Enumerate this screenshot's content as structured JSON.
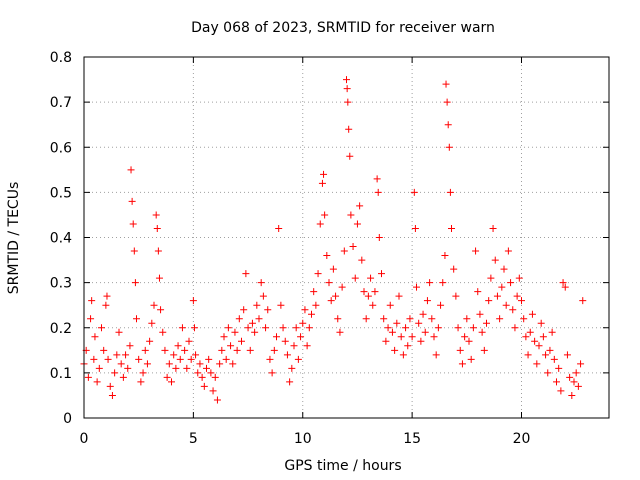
{
  "chart_data": {
    "type": "scatter",
    "title": "Day 068 of 2023, SRMTID for receiver warn",
    "xlabel": "GPS time / hours",
    "ylabel": "SRMTID / TECUs",
    "xlim": [
      0,
      24
    ],
    "ylim": [
      0,
      0.8
    ],
    "x_ticks": [
      0,
      5,
      10,
      15,
      20
    ],
    "x_tick_labels": [
      "0",
      "5",
      "10",
      "15",
      "20"
    ],
    "y_ticks": [
      0,
      0.1,
      0.2,
      0.3,
      0.4,
      0.5,
      0.6,
      0.7,
      0.8
    ],
    "y_tick_labels": [
      "0",
      "0.1",
      "0.2",
      "0.3",
      "0.4",
      "0.5",
      "0.6",
      "0.7",
      "0.8"
    ],
    "grid": true,
    "marker": "plus",
    "color": "#ff0000",
    "series": [
      {
        "name": "SRMTID",
        "points": [
          [
            0.0,
            0.12
          ],
          [
            0.1,
            0.15
          ],
          [
            0.2,
            0.09
          ],
          [
            0.3,
            0.22
          ],
          [
            0.35,
            0.26
          ],
          [
            0.45,
            0.13
          ],
          [
            0.5,
            0.18
          ],
          [
            0.6,
            0.08
          ],
          [
            0.7,
            0.11
          ],
          [
            0.8,
            0.2
          ],
          [
            0.9,
            0.15
          ],
          [
            1.0,
            0.25
          ],
          [
            1.05,
            0.27
          ],
          [
            1.1,
            0.13
          ],
          [
            1.2,
            0.07
          ],
          [
            1.3,
            0.05
          ],
          [
            1.4,
            0.1
          ],
          [
            1.5,
            0.14
          ],
          [
            1.6,
            0.19
          ],
          [
            1.7,
            0.12
          ],
          [
            1.8,
            0.09
          ],
          [
            1.9,
            0.14
          ],
          [
            2.0,
            0.11
          ],
          [
            2.1,
            0.16
          ],
          [
            2.15,
            0.55
          ],
          [
            2.2,
            0.48
          ],
          [
            2.25,
            0.43
          ],
          [
            2.3,
            0.37
          ],
          [
            2.35,
            0.3
          ],
          [
            2.4,
            0.22
          ],
          [
            2.5,
            0.13
          ],
          [
            2.6,
            0.08
          ],
          [
            2.7,
            0.1
          ],
          [
            2.8,
            0.15
          ],
          [
            2.9,
            0.12
          ],
          [
            3.0,
            0.17
          ],
          [
            3.1,
            0.21
          ],
          [
            3.2,
            0.25
          ],
          [
            3.3,
            0.45
          ],
          [
            3.35,
            0.42
          ],
          [
            3.4,
            0.37
          ],
          [
            3.45,
            0.31
          ],
          [
            3.5,
            0.24
          ],
          [
            3.6,
            0.19
          ],
          [
            3.7,
            0.15
          ],
          [
            3.8,
            0.09
          ],
          [
            3.9,
            0.12
          ],
          [
            4.0,
            0.08
          ],
          [
            4.1,
            0.14
          ],
          [
            4.2,
            0.11
          ],
          [
            4.3,
            0.16
          ],
          [
            4.4,
            0.13
          ],
          [
            4.5,
            0.2
          ],
          [
            4.6,
            0.15
          ],
          [
            4.7,
            0.11
          ],
          [
            4.8,
            0.17
          ],
          [
            4.9,
            0.13
          ],
          [
            5.0,
            0.26
          ],
          [
            5.05,
            0.2
          ],
          [
            5.1,
            0.14
          ],
          [
            5.2,
            0.1
          ],
          [
            5.3,
            0.12
          ],
          [
            5.4,
            0.09
          ],
          [
            5.5,
            0.07
          ],
          [
            5.6,
            0.11
          ],
          [
            5.7,
            0.13
          ],
          [
            5.8,
            0.1
          ],
          [
            5.9,
            0.06
          ],
          [
            6.0,
            0.09
          ],
          [
            6.1,
            0.04
          ],
          [
            6.2,
            0.12
          ],
          [
            6.3,
            0.15
          ],
          [
            6.4,
            0.18
          ],
          [
            6.5,
            0.13
          ],
          [
            6.6,
            0.2
          ],
          [
            6.7,
            0.16
          ],
          [
            6.8,
            0.12
          ],
          [
            6.9,
            0.19
          ],
          [
            7.0,
            0.15
          ],
          [
            7.1,
            0.22
          ],
          [
            7.2,
            0.17
          ],
          [
            7.3,
            0.24
          ],
          [
            7.4,
            0.32
          ],
          [
            7.5,
            0.2
          ],
          [
            7.6,
            0.15
          ],
          [
            7.7,
            0.21
          ],
          [
            7.8,
            0.19
          ],
          [
            7.9,
            0.25
          ],
          [
            8.0,
            0.22
          ],
          [
            8.1,
            0.3
          ],
          [
            8.2,
            0.27
          ],
          [
            8.3,
            0.2
          ],
          [
            8.4,
            0.24
          ],
          [
            8.5,
            0.13
          ],
          [
            8.6,
            0.1
          ],
          [
            8.7,
            0.15
          ],
          [
            8.8,
            0.18
          ],
          [
            8.9,
            0.42
          ],
          [
            9.0,
            0.25
          ],
          [
            9.1,
            0.2
          ],
          [
            9.2,
            0.17
          ],
          [
            9.3,
            0.14
          ],
          [
            9.4,
            0.08
          ],
          [
            9.5,
            0.11
          ],
          [
            9.6,
            0.16
          ],
          [
            9.7,
            0.2
          ],
          [
            9.8,
            0.13
          ],
          [
            9.9,
            0.18
          ],
          [
            10.0,
            0.21
          ],
          [
            10.1,
            0.24
          ],
          [
            10.2,
            0.16
          ],
          [
            10.3,
            0.2
          ],
          [
            10.4,
            0.23
          ],
          [
            10.5,
            0.28
          ],
          [
            10.6,
            0.25
          ],
          [
            10.7,
            0.32
          ],
          [
            10.8,
            0.43
          ],
          [
            10.9,
            0.52
          ],
          [
            10.95,
            0.54
          ],
          [
            11.0,
            0.45
          ],
          [
            11.1,
            0.36
          ],
          [
            11.2,
            0.3
          ],
          [
            11.3,
            0.26
          ],
          [
            11.4,
            0.33
          ],
          [
            11.5,
            0.27
          ],
          [
            11.6,
            0.22
          ],
          [
            11.7,
            0.19
          ],
          [
            11.8,
            0.29
          ],
          [
            11.9,
            0.37
          ],
          [
            12.0,
            0.75
          ],
          [
            12.03,
            0.73
          ],
          [
            12.06,
            0.7
          ],
          [
            12.1,
            0.64
          ],
          [
            12.15,
            0.58
          ],
          [
            12.2,
            0.45
          ],
          [
            12.3,
            0.38
          ],
          [
            12.4,
            0.31
          ],
          [
            12.5,
            0.43
          ],
          [
            12.6,
            0.47
          ],
          [
            12.7,
            0.35
          ],
          [
            12.8,
            0.28
          ],
          [
            12.9,
            0.22
          ],
          [
            13.0,
            0.27
          ],
          [
            13.1,
            0.31
          ],
          [
            13.2,
            0.25
          ],
          [
            13.3,
            0.28
          ],
          [
            13.4,
            0.53
          ],
          [
            13.45,
            0.5
          ],
          [
            13.5,
            0.4
          ],
          [
            13.6,
            0.32
          ],
          [
            13.7,
            0.22
          ],
          [
            13.8,
            0.17
          ],
          [
            13.9,
            0.2
          ],
          [
            14.0,
            0.25
          ],
          [
            14.1,
            0.19
          ],
          [
            14.2,
            0.15
          ],
          [
            14.3,
            0.21
          ],
          [
            14.4,
            0.27
          ],
          [
            14.5,
            0.18
          ],
          [
            14.6,
            0.14
          ],
          [
            14.7,
            0.2
          ],
          [
            14.8,
            0.16
          ],
          [
            14.9,
            0.22
          ],
          [
            15.0,
            0.18
          ],
          [
            15.1,
            0.5
          ],
          [
            15.15,
            0.42
          ],
          [
            15.2,
            0.29
          ],
          [
            15.3,
            0.21
          ],
          [
            15.4,
            0.17
          ],
          [
            15.5,
            0.23
          ],
          [
            15.6,
            0.19
          ],
          [
            15.7,
            0.26
          ],
          [
            15.8,
            0.3
          ],
          [
            15.9,
            0.22
          ],
          [
            16.0,
            0.18
          ],
          [
            16.1,
            0.14
          ],
          [
            16.2,
            0.2
          ],
          [
            16.3,
            0.25
          ],
          [
            16.4,
            0.3
          ],
          [
            16.5,
            0.36
          ],
          [
            16.55,
            0.74
          ],
          [
            16.6,
            0.7
          ],
          [
            16.65,
            0.65
          ],
          [
            16.7,
            0.6
          ],
          [
            16.75,
            0.5
          ],
          [
            16.8,
            0.42
          ],
          [
            16.9,
            0.33
          ],
          [
            17.0,
            0.27
          ],
          [
            17.1,
            0.2
          ],
          [
            17.2,
            0.15
          ],
          [
            17.3,
            0.12
          ],
          [
            17.4,
            0.18
          ],
          [
            17.5,
            0.22
          ],
          [
            17.6,
            0.17
          ],
          [
            17.7,
            0.13
          ],
          [
            17.8,
            0.2
          ],
          [
            17.9,
            0.37
          ],
          [
            18.0,
            0.28
          ],
          [
            18.1,
            0.23
          ],
          [
            18.2,
            0.19
          ],
          [
            18.3,
            0.15
          ],
          [
            18.4,
            0.21
          ],
          [
            18.5,
            0.26
          ],
          [
            18.6,
            0.31
          ],
          [
            18.7,
            0.42
          ],
          [
            18.8,
            0.35
          ],
          [
            18.9,
            0.27
          ],
          [
            19.0,
            0.22
          ],
          [
            19.1,
            0.29
          ],
          [
            19.2,
            0.33
          ],
          [
            19.3,
            0.25
          ],
          [
            19.4,
            0.37
          ],
          [
            19.5,
            0.3
          ],
          [
            19.6,
            0.24
          ],
          [
            19.7,
            0.2
          ],
          [
            19.8,
            0.27
          ],
          [
            19.9,
            0.31
          ],
          [
            20.0,
            0.26
          ],
          [
            20.1,
            0.22
          ],
          [
            20.2,
            0.18
          ],
          [
            20.3,
            0.14
          ],
          [
            20.4,
            0.19
          ],
          [
            20.5,
            0.23
          ],
          [
            20.6,
            0.17
          ],
          [
            20.7,
            0.12
          ],
          [
            20.8,
            0.16
          ],
          [
            20.9,
            0.21
          ],
          [
            21.0,
            0.18
          ],
          [
            21.1,
            0.14
          ],
          [
            21.2,
            0.1
          ],
          [
            21.3,
            0.15
          ],
          [
            21.4,
            0.19
          ],
          [
            21.5,
            0.13
          ],
          [
            21.6,
            0.08
          ],
          [
            21.7,
            0.11
          ],
          [
            21.8,
            0.06
          ],
          [
            21.9,
            0.3
          ],
          [
            22.0,
            0.29
          ],
          [
            22.1,
            0.14
          ],
          [
            22.2,
            0.09
          ],
          [
            22.3,
            0.05
          ],
          [
            22.4,
            0.08
          ],
          [
            22.5,
            0.1
          ],
          [
            22.6,
            0.07
          ],
          [
            22.7,
            0.12
          ],
          [
            22.8,
            0.26
          ]
        ]
      }
    ]
  }
}
